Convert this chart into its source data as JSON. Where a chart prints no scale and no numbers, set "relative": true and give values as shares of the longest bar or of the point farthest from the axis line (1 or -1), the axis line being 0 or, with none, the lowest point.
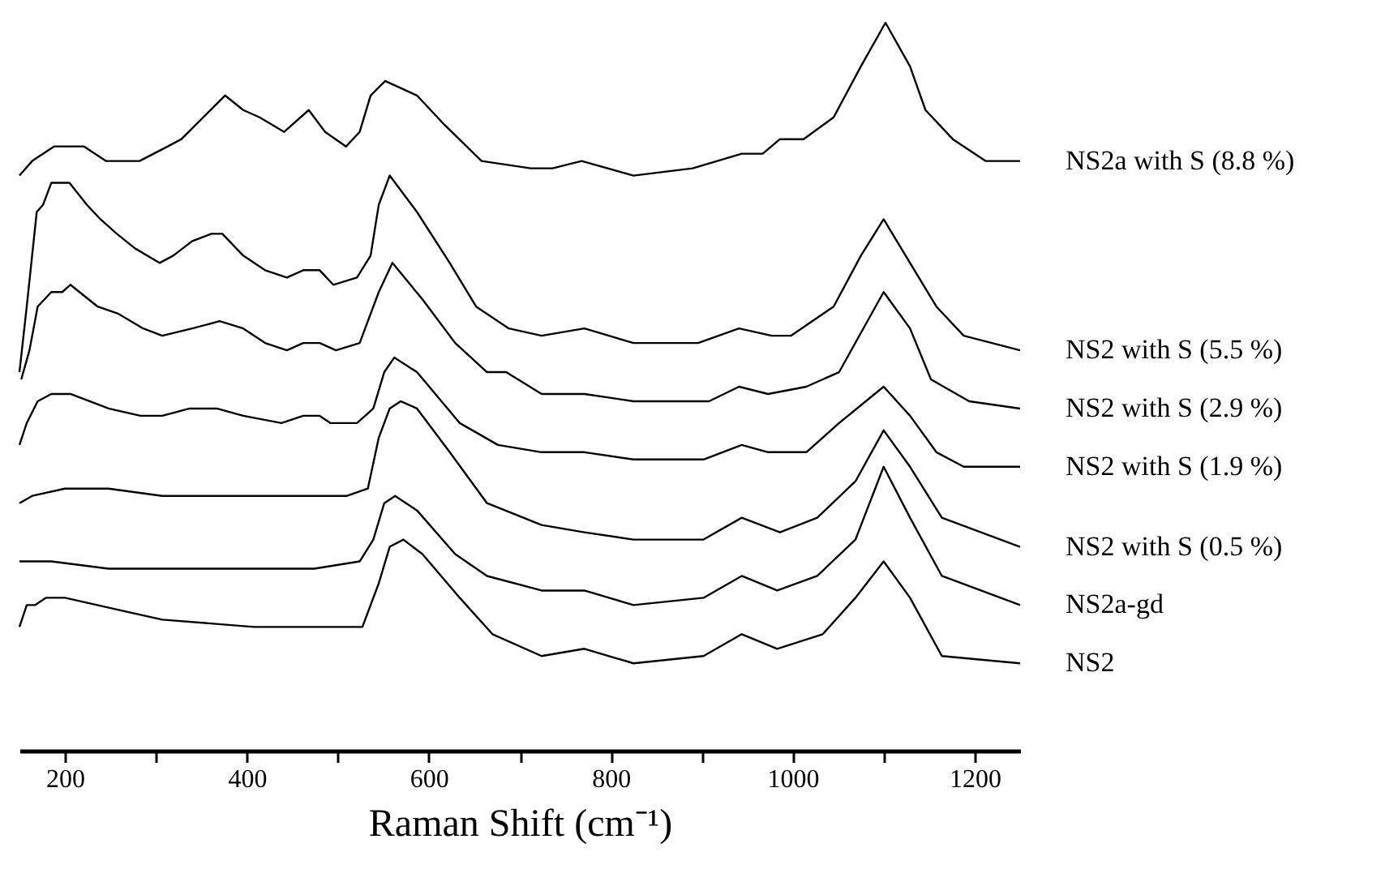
{
  "chart_data": {
    "type": "line",
    "relative": true,
    "xlabel": "Raman Shift (cm⁻¹)",
    "xlim": [
      150,
      1250
    ],
    "xticks": [
      200,
      {
        "value": 300,
        "label": null
      },
      400,
      {
        "value": 500,
        "label": null
      },
      600,
      {
        "value": 700,
        "label": null
      },
      800,
      {
        "value": 900,
        "label": null
      },
      1000,
      {
        "value": 1100,
        "label": null
      },
      1200
    ],
    "grid": false,
    "legend": false,
    "marker": "none",
    "line_style": "solid",
    "tick_labels": "x",
    "series": [
      {
        "name": "NS2a with S (8.8 %)",
        "color": "#000000",
        "x": [
          150,
          164,
          188,
          221,
          245,
          282,
          313,
          328,
          352,
          376,
          396,
          414,
          441,
          468,
          486,
          509,
          524,
          536,
          552,
          587,
          617,
          658,
          712,
          736,
          768,
          825,
          890,
          944,
          967,
          986,
          1012,
          1045,
          1075,
          1102,
          1129,
          1146,
          1176,
          1212,
          1250
        ],
        "values": [
          0.79,
          0.81,
          0.83,
          0.83,
          0.81,
          0.81,
          0.83,
          0.84,
          0.87,
          0.9,
          0.88,
          0.87,
          0.85,
          0.88,
          0.85,
          0.83,
          0.85,
          0.9,
          0.92,
          0.9,
          0.86,
          0.81,
          0.8,
          0.8,
          0.81,
          0.79,
          0.8,
          0.82,
          0.82,
          0.84,
          0.84,
          0.87,
          0.94,
          1.0,
          0.94,
          0.88,
          0.84,
          0.81,
          0.81
        ]
      },
      {
        "name": "NS2 with S (5.5 %)",
        "color": "#000000",
        "x": [
          150,
          158,
          169,
          176,
          185,
          197,
          205,
          224,
          239,
          257,
          277,
          304,
          319,
          340,
          361,
          373,
          396,
          420,
          444,
          462,
          480,
          495,
          521,
          536,
          545,
          557,
          587,
          623,
          652,
          688,
          724,
          771,
          825,
          896,
          941,
          977,
          998,
          1045,
          1075,
          1100,
          1129,
          1158,
          1188,
          1250
        ],
        "values": [
          0.52,
          0.61,
          0.74,
          0.75,
          0.78,
          0.78,
          0.78,
          0.75,
          0.73,
          0.71,
          0.69,
          0.67,
          0.68,
          0.7,
          0.71,
          0.71,
          0.68,
          0.66,
          0.65,
          0.66,
          0.66,
          0.64,
          0.65,
          0.68,
          0.75,
          0.79,
          0.74,
          0.67,
          0.61,
          0.58,
          0.57,
          0.58,
          0.56,
          0.56,
          0.58,
          0.57,
          0.57,
          0.61,
          0.68,
          0.73,
          0.67,
          0.61,
          0.57,
          0.55
        ]
      },
      {
        "name": "NS2 with S (2.9 %)",
        "color": "#000000",
        "x": [
          152,
          161,
          170,
          185,
          197,
          206,
          236,
          259,
          286,
          307,
          340,
          370,
          396,
          420,
          444,
          462,
          480,
          498,
          524,
          545,
          560,
          593,
          629,
          664,
          685,
          724,
          771,
          825,
          908,
          941,
          973,
          1015,
          1051,
          1100,
          1129,
          1152,
          1194,
          1250
        ],
        "values": [
          0.51,
          0.55,
          0.61,
          0.63,
          0.63,
          0.64,
          0.61,
          0.6,
          0.58,
          0.57,
          0.58,
          0.59,
          0.58,
          0.56,
          0.55,
          0.56,
          0.56,
          0.55,
          0.56,
          0.63,
          0.67,
          0.62,
          0.56,
          0.52,
          0.52,
          0.49,
          0.49,
          0.48,
          0.48,
          0.5,
          0.49,
          0.5,
          0.52,
          0.63,
          0.58,
          0.51,
          0.48,
          0.47
        ]
      },
      {
        "name": "NS2 with S (1.9 %)",
        "color": "#000000",
        "x": [
          150,
          158,
          170,
          185,
          206,
          248,
          283,
          307,
          337,
          367,
          396,
          438,
          462,
          480,
          492,
          521,
          539,
          551,
          562,
          587,
          634,
          676,
          724,
          771,
          825,
          902,
          944,
          973,
          1015,
          1051,
          1100,
          1129,
          1158,
          1188,
          1250
        ],
        "values": [
          0.42,
          0.45,
          0.48,
          0.49,
          0.49,
          0.47,
          0.46,
          0.46,
          0.47,
          0.47,
          0.46,
          0.45,
          0.46,
          0.46,
          0.45,
          0.45,
          0.47,
          0.52,
          0.54,
          0.52,
          0.45,
          0.42,
          0.41,
          0.41,
          0.4,
          0.4,
          0.42,
          0.41,
          0.41,
          0.45,
          0.5,
          0.46,
          0.41,
          0.39,
          0.39
        ]
      },
      {
        "name": "NS2 with S (0.5 %)",
        "color": "#000000",
        "x": [
          150,
          164,
          200,
          248,
          307,
          367,
          426,
          510,
          533,
          545,
          557,
          569,
          587,
          623,
          664,
          724,
          771,
          825,
          902,
          944,
          986,
          1027,
          1069,
          1100,
          1129,
          1164,
          1250
        ],
        "values": [
          0.34,
          0.35,
          0.36,
          0.36,
          0.35,
          0.35,
          0.35,
          0.35,
          0.36,
          0.43,
          0.47,
          0.48,
          0.47,
          0.41,
          0.34,
          0.31,
          0.3,
          0.29,
          0.29,
          0.32,
          0.3,
          0.32,
          0.37,
          0.44,
          0.39,
          0.32,
          0.28
        ]
      },
      {
        "name": "NS2a-gd",
        "color": "#000000",
        "x": [
          150,
          185,
          248,
          307,
          396,
          474,
          524,
          539,
          551,
          563,
          587,
          629,
          664,
          724,
          771,
          825,
          902,
          944,
          983,
          1027,
          1069,
          1100,
          1129,
          1164,
          1250
        ],
        "values": [
          0.26,
          0.26,
          0.25,
          0.25,
          0.25,
          0.25,
          0.26,
          0.29,
          0.34,
          0.35,
          0.33,
          0.27,
          0.24,
          0.22,
          0.22,
          0.2,
          0.21,
          0.24,
          0.22,
          0.24,
          0.29,
          0.39,
          0.32,
          0.24,
          0.2
        ]
      },
      {
        "name": "NS2",
        "color": "#000000",
        "x": [
          150,
          158,
          167,
          179,
          200,
          271,
          307,
          408,
          527,
          545,
          557,
          572,
          593,
          634,
          670,
          724,
          771,
          825,
          902,
          944,
          983,
          1033,
          1069,
          1100,
          1129,
          1164,
          1250
        ],
        "values": [
          0.17,
          0.2,
          0.2,
          0.21,
          0.21,
          0.19,
          0.18,
          0.17,
          0.17,
          0.23,
          0.28,
          0.29,
          0.27,
          0.21,
          0.16,
          0.13,
          0.14,
          0.12,
          0.13,
          0.16,
          0.14,
          0.16,
          0.21,
          0.26,
          0.21,
          0.13,
          0.12
        ]
      }
    ]
  }
}
